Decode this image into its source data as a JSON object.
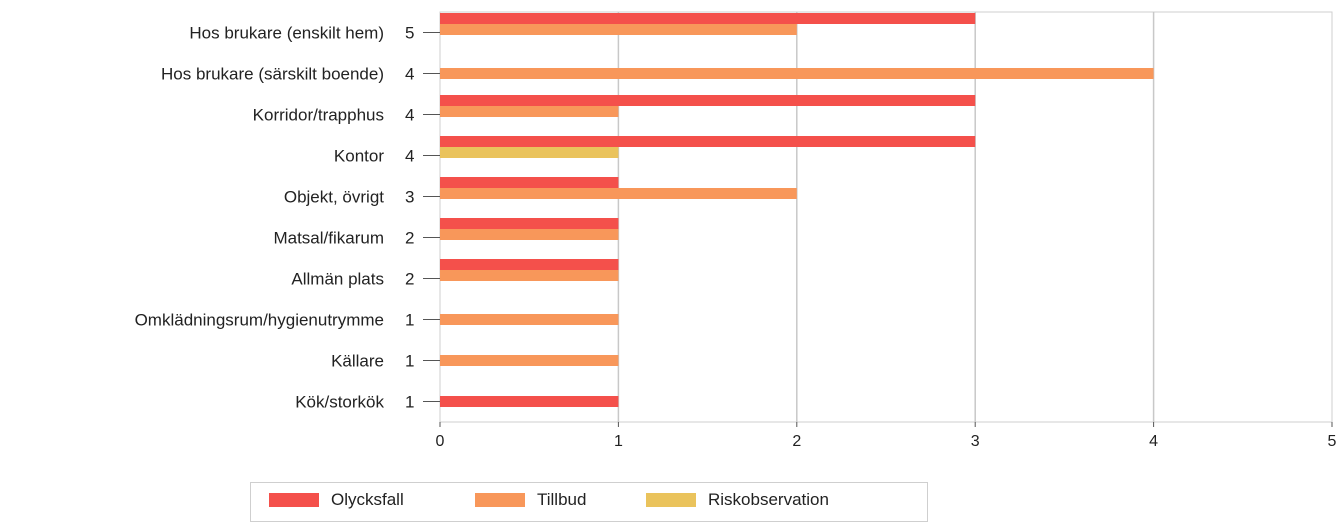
{
  "chart_data": {
    "type": "bar",
    "orientation": "horizontal",
    "categories": [
      "Hos brukare (enskilt hem)",
      "Hos brukare (särskilt boende)",
      "Korridor/trapphus",
      "Kontor",
      "Objekt, övrigt",
      "Matsal/fikarum",
      "Allmän plats",
      "Omklädningsrum/hygienutrymme",
      "Källare",
      "Kök/storkök"
    ],
    "totals": [
      "5",
      "4",
      "4",
      "4",
      "3",
      "2",
      "2",
      "1",
      "1",
      "1"
    ],
    "series": [
      {
        "name": "Olycksfall",
        "color": "#f4504b",
        "values": [
          3,
          0,
          3,
          3,
          1,
          1,
          1,
          0,
          0,
          1
        ]
      },
      {
        "name": "Tillbud",
        "color": "#f8975a",
        "values": [
          2,
          4,
          1,
          0,
          2,
          1,
          1,
          1,
          1,
          0
        ]
      },
      {
        "name": "Riskobservation",
        "color": "#eac35c",
        "values": [
          0,
          0,
          0,
          1,
          0,
          0,
          0,
          0,
          0,
          0
        ]
      }
    ],
    "xlim": [
      0,
      5
    ],
    "xticks": [
      "0",
      "1",
      "2",
      "3",
      "4",
      "5"
    ],
    "grid": true,
    "legend_position": "bottom"
  }
}
